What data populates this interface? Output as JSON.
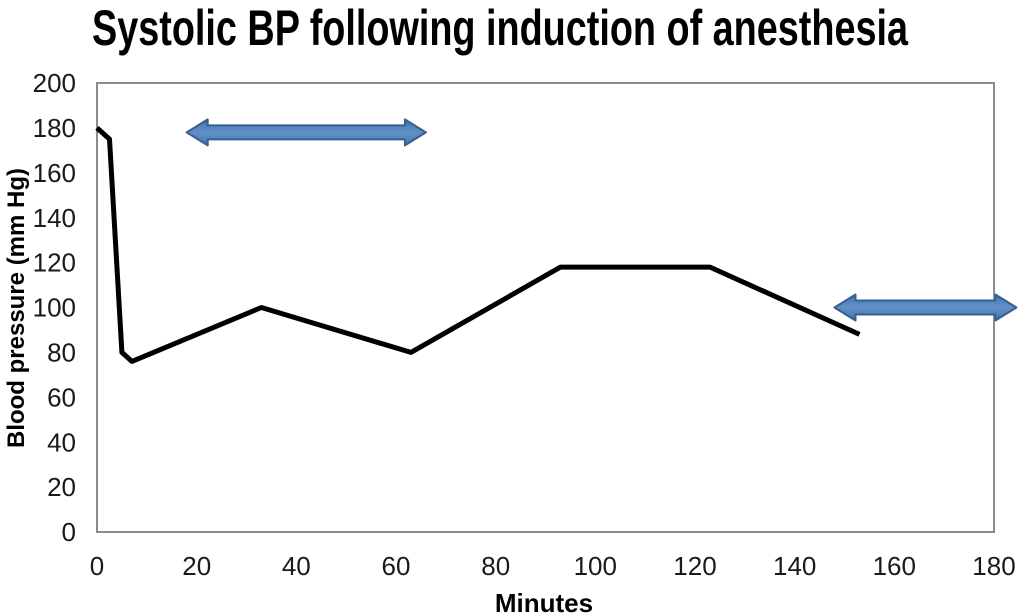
{
  "window": {
    "background_color": "#ffffff"
  },
  "chart_data": {
    "type": "line",
    "title": "Systolic BP following induction of anesthesia",
    "xlabel": "Minutes",
    "ylabel": "Blood pressure (mm Hg)",
    "xlim": [
      0,
      180
    ],
    "ylim": [
      0,
      200
    ],
    "xticks": [
      0,
      20,
      40,
      60,
      80,
      100,
      120,
      140,
      160,
      180
    ],
    "yticks": [
      0,
      20,
      40,
      60,
      80,
      100,
      120,
      140,
      160,
      180,
      200
    ],
    "grid": false,
    "legend": false,
    "plot_border_color": "#8C8C8C",
    "tick_label_color": "#1a1a1a",
    "series": [
      {
        "name": "systolic-bp",
        "color": "#000000",
        "line_width": 5,
        "x": [
          0,
          2.5,
          5,
          7,
          33,
          63,
          93,
          123,
          153
        ],
        "y": [
          180,
          175,
          80,
          76,
          100,
          80,
          118,
          118,
          88
        ]
      }
    ],
    "annotations": [
      {
        "type": "double-arrow",
        "x_start": 18,
        "x_end": 66,
        "y": 178,
        "fill": "#4F81BD",
        "border": "#36608F"
      },
      {
        "type": "double-arrow",
        "x_start": 148,
        "x_end": 184.5,
        "y": 100,
        "fill": "#4F81BD",
        "border": "#36608F"
      }
    ]
  }
}
